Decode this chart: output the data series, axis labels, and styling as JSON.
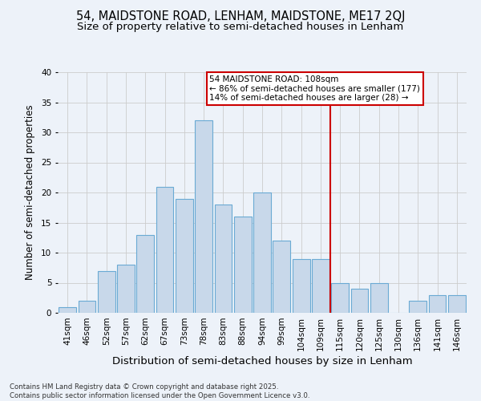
{
  "title1": "54, MAIDSTONE ROAD, LENHAM, MAIDSTONE, ME17 2QJ",
  "title2": "Size of property relative to semi-detached houses in Lenham",
  "xlabel": "Distribution of semi-detached houses by size in Lenham",
  "ylabel": "Number of semi-detached properties",
  "categories": [
    "41sqm",
    "46sqm",
    "52sqm",
    "57sqm",
    "62sqm",
    "67sqm",
    "73sqm",
    "78sqm",
    "83sqm",
    "88sqm",
    "94sqm",
    "99sqm",
    "104sqm",
    "109sqm",
    "115sqm",
    "120sqm",
    "125sqm",
    "130sqm",
    "136sqm",
    "141sqm",
    "146sqm"
  ],
  "values": [
    1,
    2,
    7,
    8,
    13,
    21,
    19,
    32,
    18,
    16,
    20,
    12,
    9,
    9,
    5,
    4,
    5,
    0,
    2,
    3,
    3
  ],
  "bar_color": "#c8d8ea",
  "bar_edge_color": "#6aaad4",
  "vline_index": 13,
  "annotation_text": "54 MAIDSTONE ROAD: 108sqm\n← 86% of semi-detached houses are smaller (177)\n14% of semi-detached houses are larger (28) →",
  "annotation_box_color": "#ffffff",
  "annotation_box_edge_color": "#cc0000",
  "vline_color": "#cc0000",
  "grid_color": "#cccccc",
  "background_color": "#edf2f9",
  "footer_text": "Contains HM Land Registry data © Crown copyright and database right 2025.\nContains public sector information licensed under the Open Government Licence v3.0.",
  "ylim": [
    0,
    40
  ],
  "yticks": [
    0,
    5,
    10,
    15,
    20,
    25,
    30,
    35,
    40
  ],
  "title1_fontsize": 10.5,
  "title2_fontsize": 9.5,
  "xlabel_fontsize": 9.5,
  "ylabel_fontsize": 8.5,
  "tick_fontsize": 7.5,
  "ann_fontsize": 7.5
}
